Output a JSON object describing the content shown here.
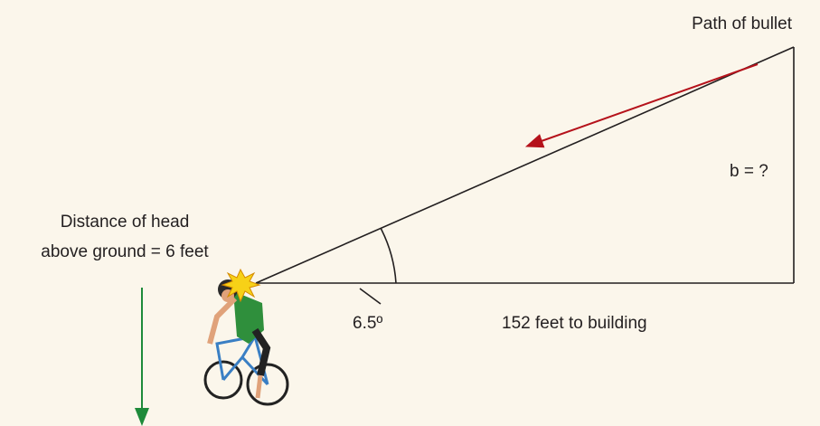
{
  "labels": {
    "path": "Path of bullet",
    "b": "b = ?",
    "distance_line1": "Distance of head",
    "distance_line2": "above ground = 6 feet",
    "angle": "6.5º",
    "base": "152 feet to building"
  }
}
